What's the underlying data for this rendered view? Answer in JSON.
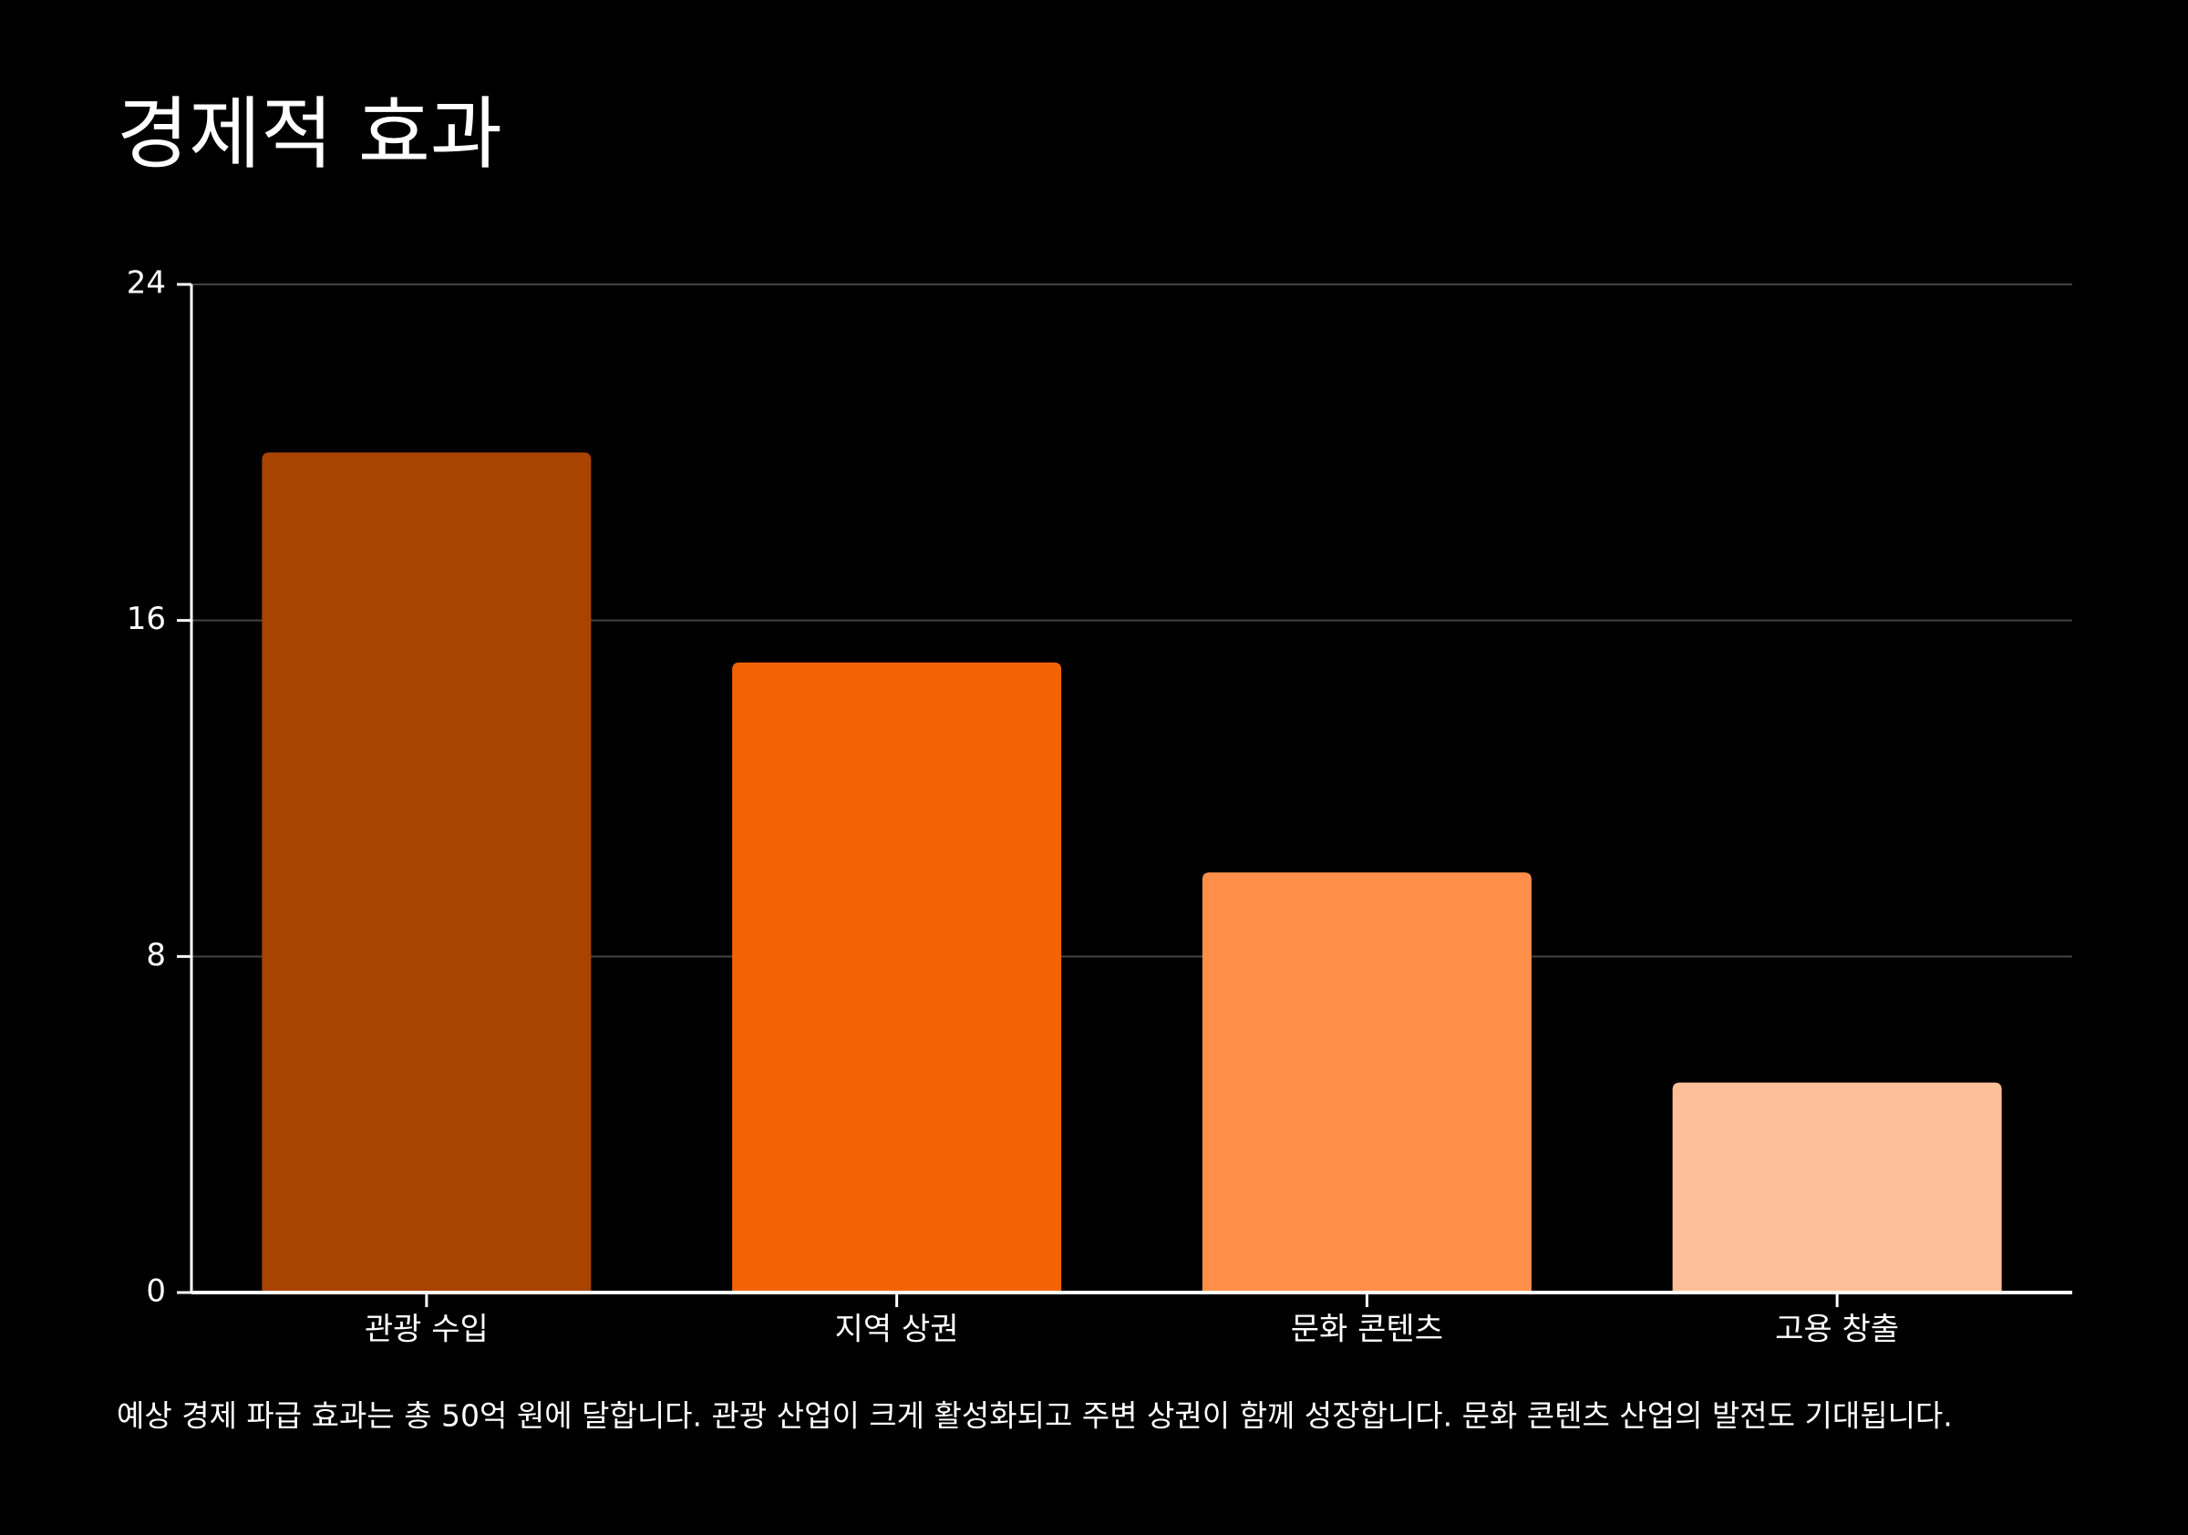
{
  "chart_data": {
    "type": "bar",
    "title": "경제적 효과",
    "categories": [
      "관광 수입",
      "지역 상권",
      "문화 콘텐츠",
      "고용 창출"
    ],
    "values": [
      20,
      15,
      10,
      5
    ],
    "colors": [
      "#a84300",
      "#f26306",
      "#fd8f4b",
      "#fdbf97"
    ],
    "ylim": [
      0,
      24
    ],
    "yticks": [
      0,
      8,
      16,
      24
    ],
    "grid": true,
    "caption": "예상 경제 파급 효과는 총 50억 원에 달합니다. 관광 산업이 크게 활성화되고 주변 상권이 함께 성장합니다. 문화 콘텐츠 산업의 발전도 기대됩니다."
  }
}
